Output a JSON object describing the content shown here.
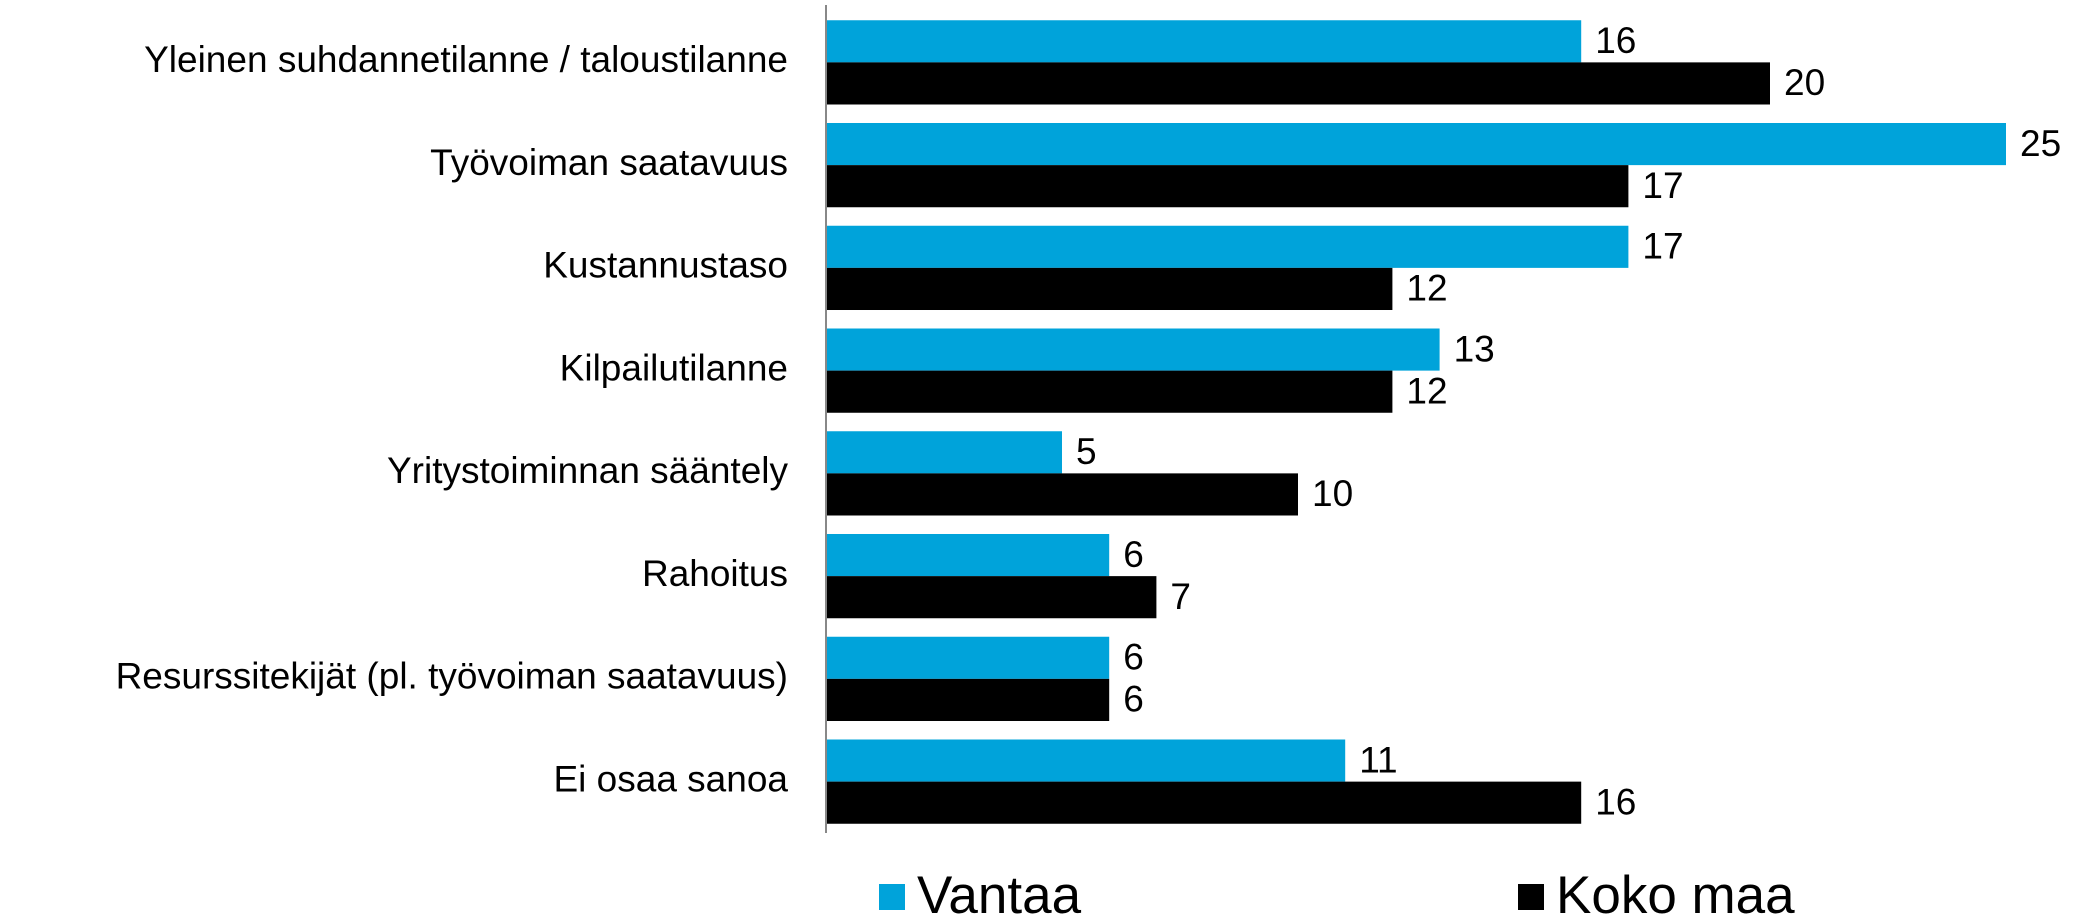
{
  "chart_data": {
    "type": "bar",
    "orientation": "horizontal",
    "categories": [
      "Yleinen suhdannetilanne / taloustilanne",
      "Työvoiman saatavuus",
      "Kustannustaso",
      "Kilpailutilanne",
      "Yritystoiminnan sääntely",
      "Rahoitus",
      "Resurssitekijät (pl. työvoiman saatavuus)",
      "Ei osaa sanoa"
    ],
    "series": [
      {
        "name": "Vantaa",
        "color": "#00a3da",
        "values": [
          16,
          25,
          17,
          13,
          5,
          6,
          6,
          11
        ]
      },
      {
        "name": "Koko maa",
        "color": "#000000",
        "values": [
          20,
          17,
          12,
          12,
          10,
          7,
          6,
          16
        ]
      }
    ],
    "legend": "bottom"
  }
}
